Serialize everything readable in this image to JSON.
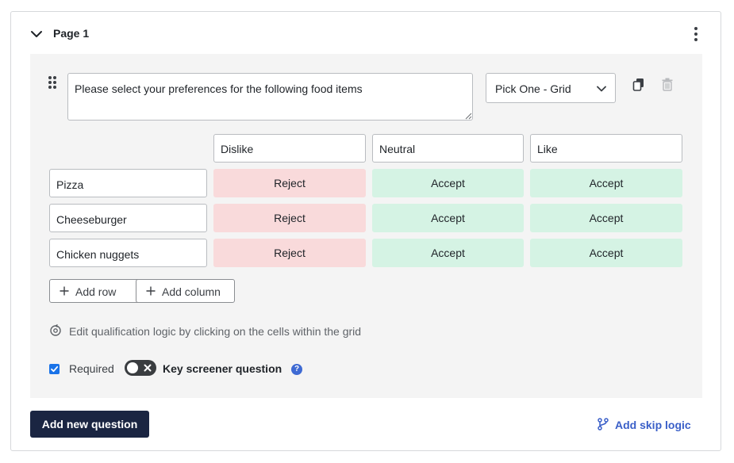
{
  "page": {
    "title": "Page 1"
  },
  "question": {
    "text": "Please select your preferences for the following food items",
    "type": "Pick One - Grid",
    "columns": [
      "Dislike",
      "Neutral",
      "Like"
    ],
    "rows": [
      {
        "label": "Pizza",
        "cells": [
          "Reject",
          "Accept",
          "Accept"
        ]
      },
      {
        "label": "Cheeseburger",
        "cells": [
          "Reject",
          "Accept",
          "Accept"
        ]
      },
      {
        "label": "Chicken nuggets",
        "cells": [
          "Reject",
          "Accept",
          "Accept"
        ]
      }
    ],
    "add_row_label": "Add row",
    "add_column_label": "Add column",
    "logic_hint": "Edit qualification logic by clicking on the cells within the grid",
    "required_label": "Required",
    "required_checked": true,
    "key_screener_label": "Key screener question",
    "key_screener_on": false,
    "help_glyph": "?"
  },
  "footer": {
    "add_question_label": "Add new question",
    "skip_logic_label": "Add skip logic"
  },
  "colors": {
    "reject_bg": "#f9dadb",
    "accept_bg": "#d5f3e4",
    "primary_button": "#1a2542",
    "link_blue": "#3a5fc8",
    "checkbox_blue": "#1a73e8"
  },
  "icons": {
    "collapse": "chevron-down-icon",
    "menu": "kebab-menu-icon",
    "drag": "drag-handle-icon",
    "duplicate": "copy-icon",
    "delete": "trash-icon",
    "add": "plus-icon",
    "logic": "logic-cycle-icon",
    "branch": "branch-icon",
    "help": "help-icon"
  }
}
